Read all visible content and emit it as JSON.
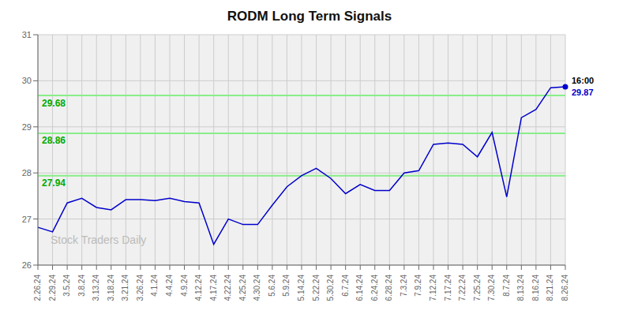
{
  "chart_data": {
    "type": "line",
    "title": "RODM Long Term Signals",
    "categories": [
      "2.26.24",
      "2.29.24",
      "3.5.24",
      "3.8.24",
      "3.13.24",
      "3.18.24",
      "3.21.24",
      "3.26.24",
      "4.1.24",
      "4.4.24",
      "4.9.24",
      "4.12.24",
      "4.17.24",
      "4.22.24",
      "4.25.24",
      "4.30.24",
      "5.6.24",
      "5.9.24",
      "5.14.24",
      "5.22.24",
      "5.30.24",
      "6.7.24",
      "6.14.24",
      "6.24.24",
      "6.28.24",
      "7.3.24",
      "7.9.24",
      "7.12.24",
      "7.17.24",
      "7.22.24",
      "7.25.24",
      "7.30.24",
      "8.7.24",
      "8.13.24",
      "8.16.24",
      "8.21.24",
      "8.26.24"
    ],
    "values": [
      26.82,
      26.72,
      27.35,
      27.45,
      27.25,
      27.2,
      27.42,
      27.42,
      27.4,
      27.45,
      27.38,
      27.35,
      26.45,
      27.0,
      26.88,
      26.88,
      27.3,
      27.7,
      27.94,
      28.1,
      27.88,
      27.55,
      27.75,
      27.62,
      27.62,
      28.0,
      28.05,
      28.62,
      28.65,
      28.62,
      28.35,
      28.88,
      27.48,
      29.2,
      29.38,
      29.85,
      29.87
    ],
    "color": "#0000cc",
    "ylim": [
      26.0,
      31.0
    ],
    "yticks": [
      26,
      27,
      28,
      29,
      30,
      31
    ],
    "grid": true,
    "hlines": [
      {
        "value": 27.94,
        "label": "27.94",
        "color": "#88ee88",
        "label_color": "#00aa00"
      },
      {
        "value": 28.86,
        "label": "28.86",
        "color": "#88ee88",
        "label_color": "#00aa00"
      },
      {
        "value": 29.68,
        "label": "29.68",
        "color": "#88ee88",
        "label_color": "#00aa00"
      }
    ],
    "annotations": [
      {
        "text": "16:00",
        "color": "#000000"
      },
      {
        "text": "29.87",
        "color": "#0000cc"
      }
    ],
    "watermark": "Stock Traders Daily"
  }
}
